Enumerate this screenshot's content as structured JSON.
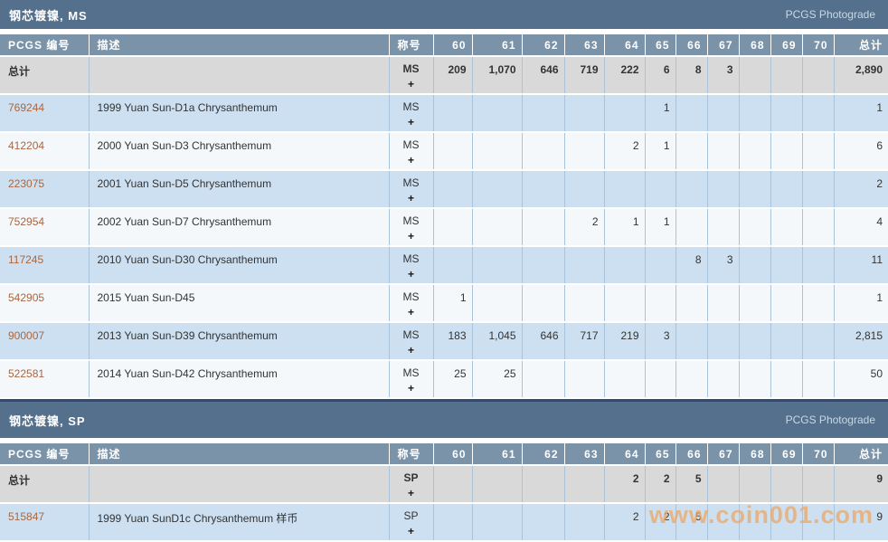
{
  "photograde_label": "PCGS Photograde",
  "watermark": "www.coin001.com",
  "plus_glyph": "+",
  "colors": {
    "slab": "#55708c",
    "headrow": "#7b93a9",
    "rowblue": "#cde0f1",
    "rowwhite": "#f4f8fb",
    "totalbg": "#d9d9d9",
    "grid": "#aac3d8",
    "darkline": "#2d4d6e",
    "link": "#a9663f",
    "watermark": "#f0a55f",
    "photograde_text": "#c9d9e6"
  },
  "columns": {
    "pcgs": "PCGS 编号",
    "desc": "描述",
    "designation": "称号",
    "grades": [
      "60",
      "61",
      "62",
      "63",
      "64",
      "65",
      "66",
      "67",
      "68",
      "69",
      "70"
    ],
    "total": "总计"
  },
  "tables": [
    {
      "title": "钢芯镀镍, MS",
      "total_row": {
        "label": "总计",
        "designation": "MS",
        "grades": [
          "209",
          "1,070",
          "646",
          "719",
          "222",
          "6",
          "8",
          "3",
          "",
          "",
          ""
        ],
        "total": "2,890"
      },
      "rows": [
        {
          "pcgs": "769244",
          "desc": "1999 Yuan Sun-D1a Chrysanthemum",
          "designation": "MS",
          "grades": [
            "",
            "",
            "",
            "",
            "",
            "1",
            "",
            "",
            "",
            "",
            ""
          ],
          "total": "1"
        },
        {
          "pcgs": "412204",
          "desc": "2000 Yuan Sun-D3 Chrysanthemum",
          "designation": "MS",
          "grades": [
            "",
            "",
            "",
            "",
            "2",
            "1",
            "",
            "",
            "",
            "",
            ""
          ],
          "total": "6"
        },
        {
          "pcgs": "223075",
          "desc": "2001 Yuan Sun-D5 Chrysanthemum",
          "designation": "MS",
          "grades": [
            "",
            "",
            "",
            "",
            "",
            "",
            "",
            "",
            "",
            "",
            ""
          ],
          "total": "2"
        },
        {
          "pcgs": "752954",
          "desc": "2002 Yuan Sun-D7 Chrysanthemum",
          "designation": "MS",
          "grades": [
            "",
            "",
            "",
            "2",
            "1",
            "1",
            "",
            "",
            "",
            "",
            ""
          ],
          "total": "4"
        },
        {
          "pcgs": "117245",
          "desc": "2010 Yuan Sun-D30 Chrysanthemum",
          "designation": "MS",
          "grades": [
            "",
            "",
            "",
            "",
            "",
            "",
            "8",
            "3",
            "",
            "",
            ""
          ],
          "total": "11"
        },
        {
          "pcgs": "542905",
          "desc": "2015 Yuan Sun-D45",
          "designation": "MS",
          "grades": [
            "1",
            "",
            "",
            "",
            "",
            "",
            "",
            "",
            "",
            "",
            ""
          ],
          "total": "1"
        },
        {
          "pcgs": "900007",
          "desc": "2013 Yuan Sun-D39 Chrysanthemum",
          "designation": "MS",
          "grades": [
            "183",
            "1,045",
            "646",
            "717",
            "219",
            "3",
            "",
            "",
            "",
            "",
            ""
          ],
          "total": "2,815"
        },
        {
          "pcgs": "522581",
          "desc": "2014 Yuan Sun-D42 Chrysanthemum",
          "designation": "MS",
          "grades": [
            "25",
            "25",
            "",
            "",
            "",
            "",
            "",
            "",
            "",
            "",
            ""
          ],
          "total": "50"
        }
      ]
    },
    {
      "title": "钢芯镀镍, SP",
      "total_row": {
        "label": "总计",
        "designation": "SP",
        "grades": [
          "",
          "",
          "",
          "",
          "2",
          "2",
          "5",
          "",
          "",
          "",
          ""
        ],
        "total": "9"
      },
      "rows": [
        {
          "pcgs": "515847",
          "desc": "1999 Yuan SunD1c Chrysanthemum 样币",
          "designation": "SP",
          "grades": [
            "",
            "",
            "",
            "",
            "2",
            "2",
            "5",
            "",
            "",
            "",
            ""
          ],
          "total": "9"
        }
      ]
    }
  ]
}
